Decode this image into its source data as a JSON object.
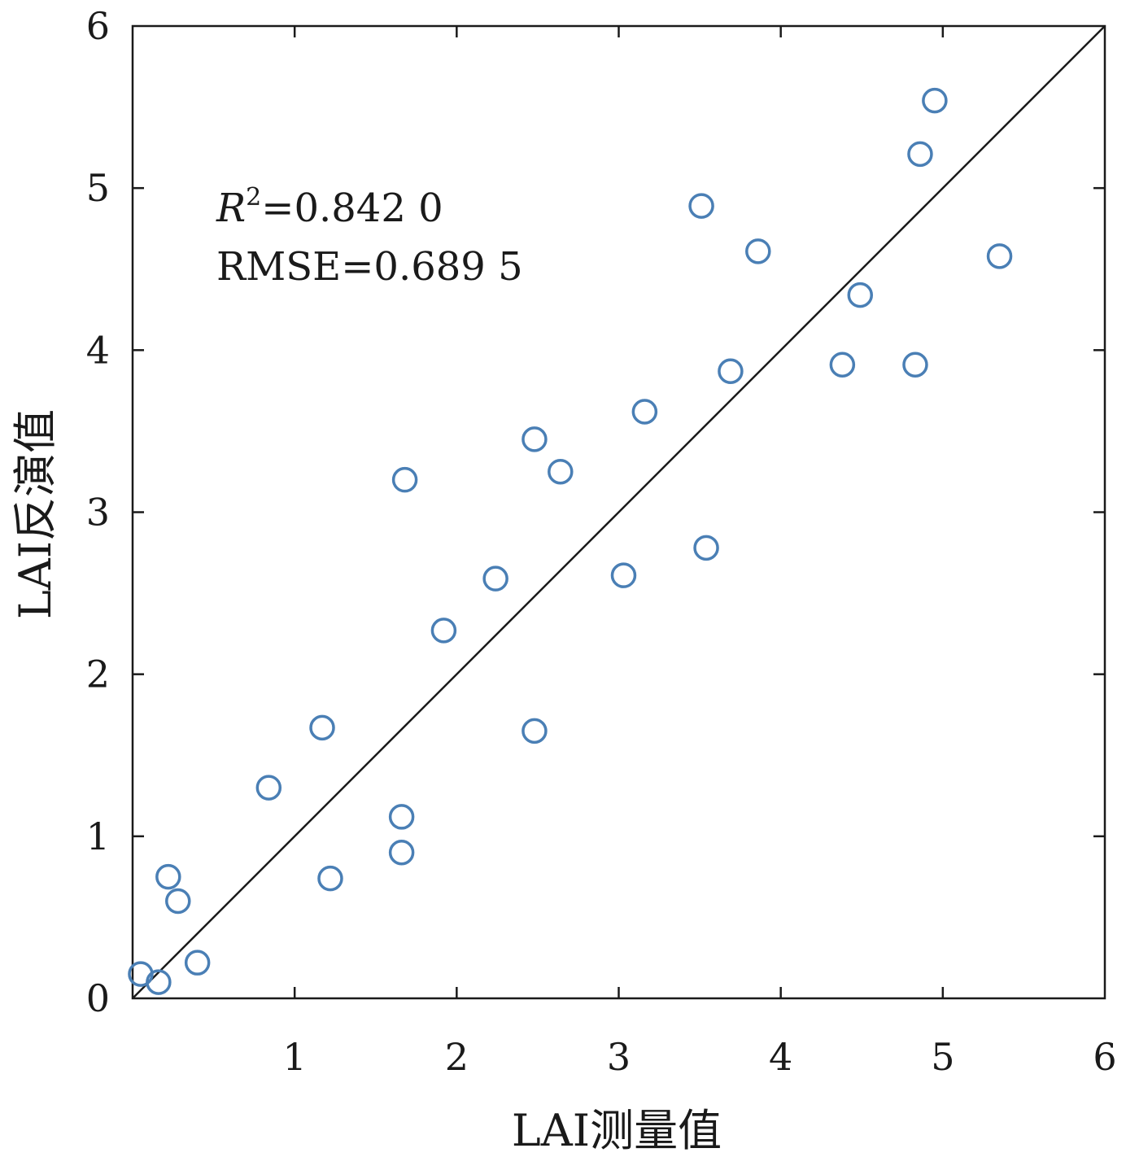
{
  "chart_data": {
    "type": "scatter",
    "title": "",
    "xlabel": "LAI测量值",
    "ylabel": "LAI反演值",
    "xlim": [
      0,
      6
    ],
    "ylim": [
      0,
      6
    ],
    "x_ticks": [
      "1",
      "2",
      "3",
      "4",
      "5",
      "6"
    ],
    "y_ticks": [
      "0",
      "1",
      "2",
      "3",
      "4",
      "5",
      "6"
    ],
    "grid": false,
    "reference_line": "1:1",
    "marker": "open-circle",
    "marker_color": "#4a7fb5",
    "annotations": {
      "r2_symbol": "R",
      "r2_superscript": "2",
      "r2_value": "=0.842 0",
      "rmse": "RMSE=0.689 5"
    },
    "series": [
      {
        "points": [
          {
            "x": 0.05,
            "y": 0.15
          },
          {
            "x": 0.16,
            "y": 0.1
          },
          {
            "x": 0.22,
            "y": 0.75
          },
          {
            "x": 0.28,
            "y": 0.6
          },
          {
            "x": 0.4,
            "y": 0.22
          },
          {
            "x": 0.84,
            "y": 1.3
          },
          {
            "x": 1.17,
            "y": 1.67
          },
          {
            "x": 1.22,
            "y": 0.74
          },
          {
            "x": 1.66,
            "y": 1.12
          },
          {
            "x": 1.66,
            "y": 0.9
          },
          {
            "x": 1.68,
            "y": 3.2
          },
          {
            "x": 1.92,
            "y": 2.27
          },
          {
            "x": 2.24,
            "y": 2.59
          },
          {
            "x": 2.48,
            "y": 3.45
          },
          {
            "x": 2.48,
            "y": 1.65
          },
          {
            "x": 2.64,
            "y": 3.25
          },
          {
            "x": 3.03,
            "y": 2.61
          },
          {
            "x": 3.16,
            "y": 3.62
          },
          {
            "x": 3.51,
            "y": 4.89
          },
          {
            "x": 3.54,
            "y": 2.78
          },
          {
            "x": 3.69,
            "y": 3.87
          },
          {
            "x": 3.86,
            "y": 4.61
          },
          {
            "x": 4.38,
            "y": 3.91
          },
          {
            "x": 4.49,
            "y": 4.34
          },
          {
            "x": 4.83,
            "y": 3.91
          },
          {
            "x": 4.86,
            "y": 5.21
          },
          {
            "x": 4.95,
            "y": 5.54
          },
          {
            "x": 5.35,
            "y": 4.58
          }
        ]
      }
    ]
  }
}
